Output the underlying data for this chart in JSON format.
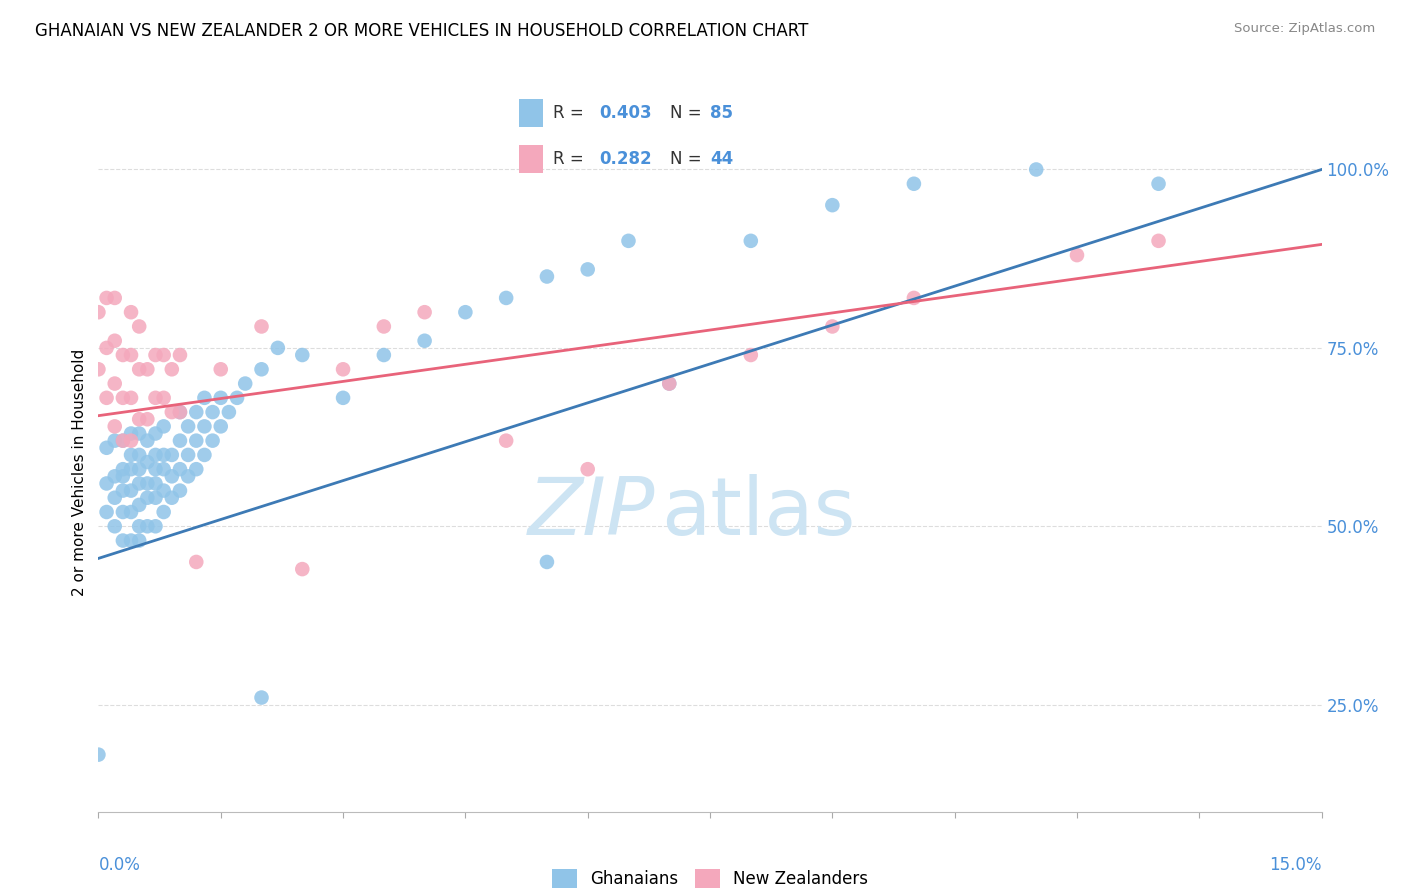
{
  "title": "GHANAIAN VS NEW ZEALANDER 2 OR MORE VEHICLES IN HOUSEHOLD CORRELATION CHART",
  "source": "Source: ZipAtlas.com",
  "ylabel": "2 or more Vehicles in Household",
  "y_ticks": [
    0.25,
    0.5,
    0.75,
    1.0
  ],
  "y_tick_labels": [
    "25.0%",
    "50.0%",
    "75.0%",
    "100.0%"
  ],
  "x_min": 0.0,
  "x_max": 0.15,
  "y_min": 0.1,
  "y_max": 1.05,
  "r_blue": 0.403,
  "n_blue": 85,
  "r_pink": 0.282,
  "n_pink": 44,
  "color_blue": "#90c4e8",
  "color_pink": "#f4a8bc",
  "line_blue": "#3d7ab5",
  "line_pink": "#e8637a",
  "legend_label_blue": "Ghanaians",
  "legend_label_pink": "New Zealanders",
  "watermark_zip": "ZIP",
  "watermark_atlas": "atlas",
  "watermark_color": "#cde4f3",
  "blue_line_x0": 0.0,
  "blue_line_y0": 0.455,
  "blue_line_x1": 0.15,
  "blue_line_y1": 1.0,
  "pink_line_x0": 0.0,
  "pink_line_y0": 0.655,
  "pink_line_x1": 0.15,
  "pink_line_y1": 0.895,
  "blue_x": [
    0.0,
    0.001,
    0.001,
    0.001,
    0.002,
    0.002,
    0.002,
    0.002,
    0.003,
    0.003,
    0.003,
    0.003,
    0.003,
    0.003,
    0.004,
    0.004,
    0.004,
    0.004,
    0.004,
    0.004,
    0.005,
    0.005,
    0.005,
    0.005,
    0.005,
    0.005,
    0.005,
    0.006,
    0.006,
    0.006,
    0.006,
    0.006,
    0.007,
    0.007,
    0.007,
    0.007,
    0.007,
    0.007,
    0.008,
    0.008,
    0.008,
    0.008,
    0.008,
    0.009,
    0.009,
    0.009,
    0.01,
    0.01,
    0.01,
    0.01,
    0.011,
    0.011,
    0.011,
    0.012,
    0.012,
    0.012,
    0.013,
    0.013,
    0.013,
    0.014,
    0.014,
    0.015,
    0.015,
    0.016,
    0.017,
    0.018,
    0.02,
    0.02,
    0.022,
    0.025,
    0.03,
    0.035,
    0.04,
    0.045,
    0.05,
    0.055,
    0.06,
    0.065,
    0.07,
    0.08,
    0.09,
    0.1,
    0.115,
    0.13,
    0.055
  ],
  "blue_y": [
    0.18,
    0.52,
    0.56,
    0.61,
    0.5,
    0.54,
    0.57,
    0.62,
    0.48,
    0.52,
    0.55,
    0.57,
    0.58,
    0.62,
    0.48,
    0.52,
    0.55,
    0.58,
    0.6,
    0.63,
    0.48,
    0.5,
    0.53,
    0.56,
    0.58,
    0.6,
    0.63,
    0.5,
    0.54,
    0.56,
    0.59,
    0.62,
    0.5,
    0.54,
    0.56,
    0.58,
    0.6,
    0.63,
    0.52,
    0.55,
    0.58,
    0.6,
    0.64,
    0.54,
    0.57,
    0.6,
    0.55,
    0.58,
    0.62,
    0.66,
    0.57,
    0.6,
    0.64,
    0.58,
    0.62,
    0.66,
    0.6,
    0.64,
    0.68,
    0.62,
    0.66,
    0.64,
    0.68,
    0.66,
    0.68,
    0.7,
    0.26,
    0.72,
    0.75,
    0.74,
    0.68,
    0.74,
    0.76,
    0.8,
    0.82,
    0.85,
    0.86,
    0.9,
    0.7,
    0.9,
    0.95,
    0.98,
    1.0,
    0.98,
    0.45
  ],
  "pink_x": [
    0.0,
    0.0,
    0.001,
    0.001,
    0.001,
    0.002,
    0.002,
    0.002,
    0.002,
    0.003,
    0.003,
    0.003,
    0.004,
    0.004,
    0.004,
    0.004,
    0.005,
    0.005,
    0.005,
    0.006,
    0.006,
    0.007,
    0.007,
    0.008,
    0.008,
    0.009,
    0.009,
    0.01,
    0.01,
    0.012,
    0.015,
    0.02,
    0.025,
    0.03,
    0.035,
    0.04,
    0.05,
    0.06,
    0.07,
    0.08,
    0.09,
    0.1,
    0.12,
    0.13
  ],
  "pink_y": [
    0.72,
    0.8,
    0.68,
    0.75,
    0.82,
    0.64,
    0.7,
    0.76,
    0.82,
    0.62,
    0.68,
    0.74,
    0.62,
    0.68,
    0.74,
    0.8,
    0.65,
    0.72,
    0.78,
    0.65,
    0.72,
    0.68,
    0.74,
    0.68,
    0.74,
    0.66,
    0.72,
    0.66,
    0.74,
    0.45,
    0.72,
    0.78,
    0.44,
    0.72,
    0.78,
    0.8,
    0.62,
    0.58,
    0.7,
    0.74,
    0.78,
    0.82,
    0.88,
    0.9
  ]
}
